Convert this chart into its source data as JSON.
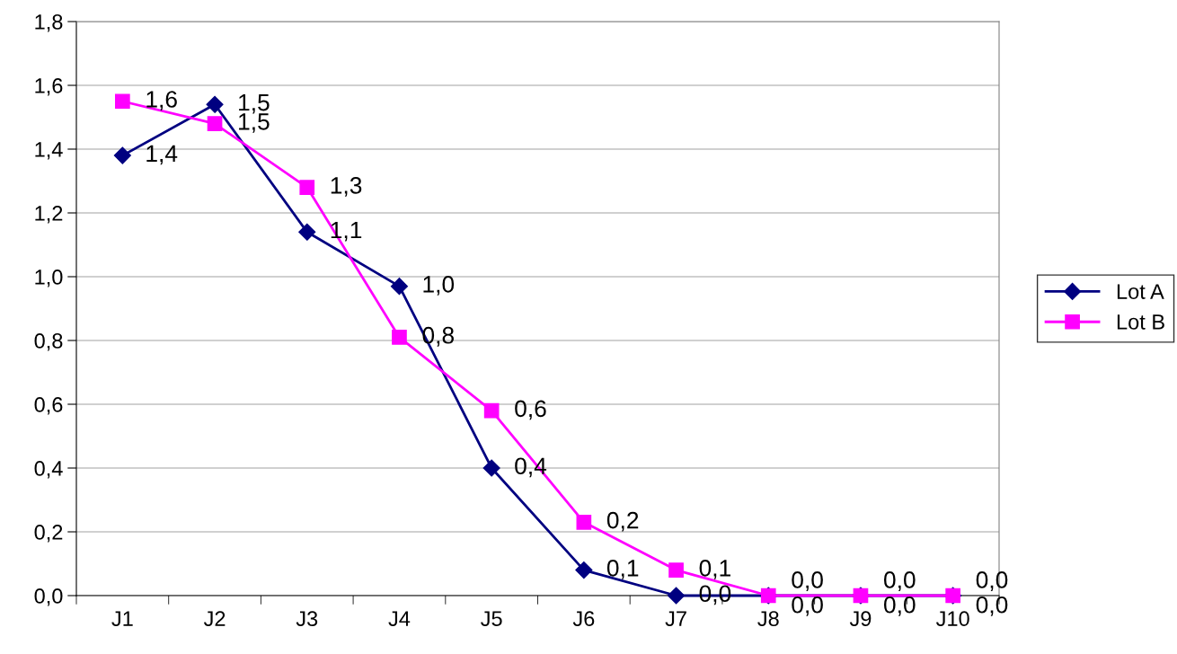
{
  "chart_data": {
    "type": "line",
    "categories": [
      "J1",
      "J2",
      "J3",
      "J4",
      "J5",
      "J6",
      "J7",
      "J8",
      "J9",
      "J10"
    ],
    "series": [
      {
        "name": "Lot A",
        "color": "#000080",
        "marker": "diamond",
        "values": [
          1.38,
          1.54,
          1.14,
          0.97,
          0.4,
          0.08,
          0,
          0,
          0,
          0
        ],
        "value_labels": [
          "1,4",
          "1,5",
          "1,1",
          "1,0",
          "0,4",
          "0,1",
          "0,0",
          "0,0",
          "0,0",
          "0,0"
        ]
      },
      {
        "name": "Lot B",
        "color": "#ff00ff",
        "marker": "square",
        "values": [
          1.55,
          1.48,
          1.28,
          0.81,
          0.58,
          0.23,
          0.08,
          0,
          0,
          0
        ],
        "value_labels": [
          "1,6",
          "1,5",
          "1,3",
          "0,8",
          "0,6",
          "0,2",
          "0,1",
          "0,0",
          "0,0",
          "0,0"
        ]
      }
    ],
    "ylim": [
      0,
      1.8
    ],
    "yticks": [
      {
        "value": 0,
        "label": "0,0"
      },
      {
        "value": 0.2,
        "label": "0,2"
      },
      {
        "value": 0.4,
        "label": "0,4"
      },
      {
        "value": 0.6,
        "label": "0,6"
      },
      {
        "value": 0.8,
        "label": "0,8"
      },
      {
        "value": 1.0,
        "label": "1,0"
      },
      {
        "value": 1.2,
        "label": "1,2"
      },
      {
        "value": 1.4,
        "label": "1,4"
      },
      {
        "value": 1.6,
        "label": "1,6"
      },
      {
        "value": 1.8,
        "label": "1,8"
      }
    ],
    "grid": "y",
    "legend": "right",
    "line_style": "solid"
  }
}
